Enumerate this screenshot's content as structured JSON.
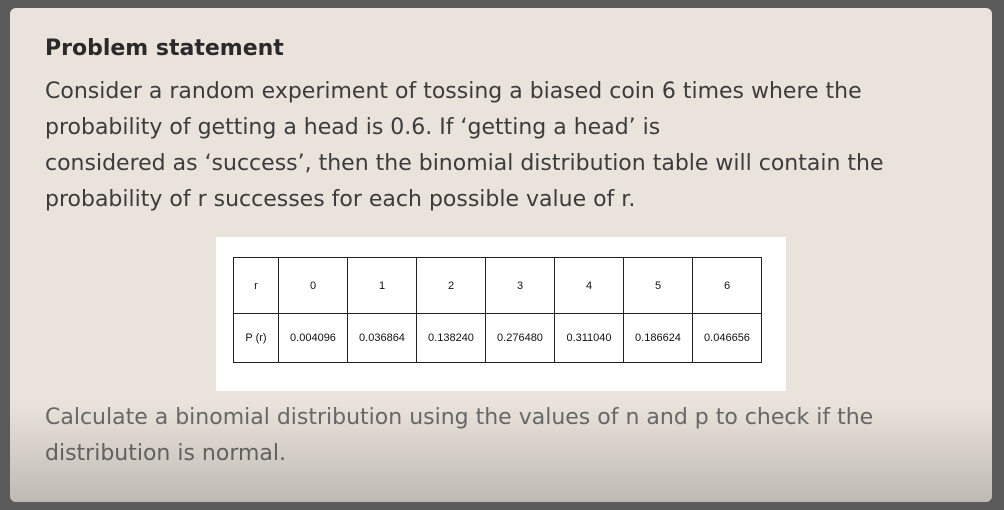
{
  "problem": {
    "title": "Problem statement",
    "lines": [
      "Consider a random experiment of tossing a biased coin 6 times where the",
      "probability of getting a head is 0.6. If ‘getting a head’ is",
      "considered as ‘success’, then the binomial distribution table will contain the",
      "probability of r successes for each possible value of r."
    ]
  },
  "table": {
    "row1_label": "r",
    "row2_label": "P (r)",
    "r_values": [
      "0",
      "1",
      "2",
      "3",
      "4",
      "5",
      "6"
    ],
    "p_values": [
      "0.004096",
      "0.036864",
      "0.138240",
      "0.276480",
      "0.311040",
      "0.186624",
      "0.046656"
    ]
  },
  "footer": {
    "lines": [
      "Calculate a binomial distribution using the values of n and p to check if the",
      "distribution is normal."
    ]
  }
}
